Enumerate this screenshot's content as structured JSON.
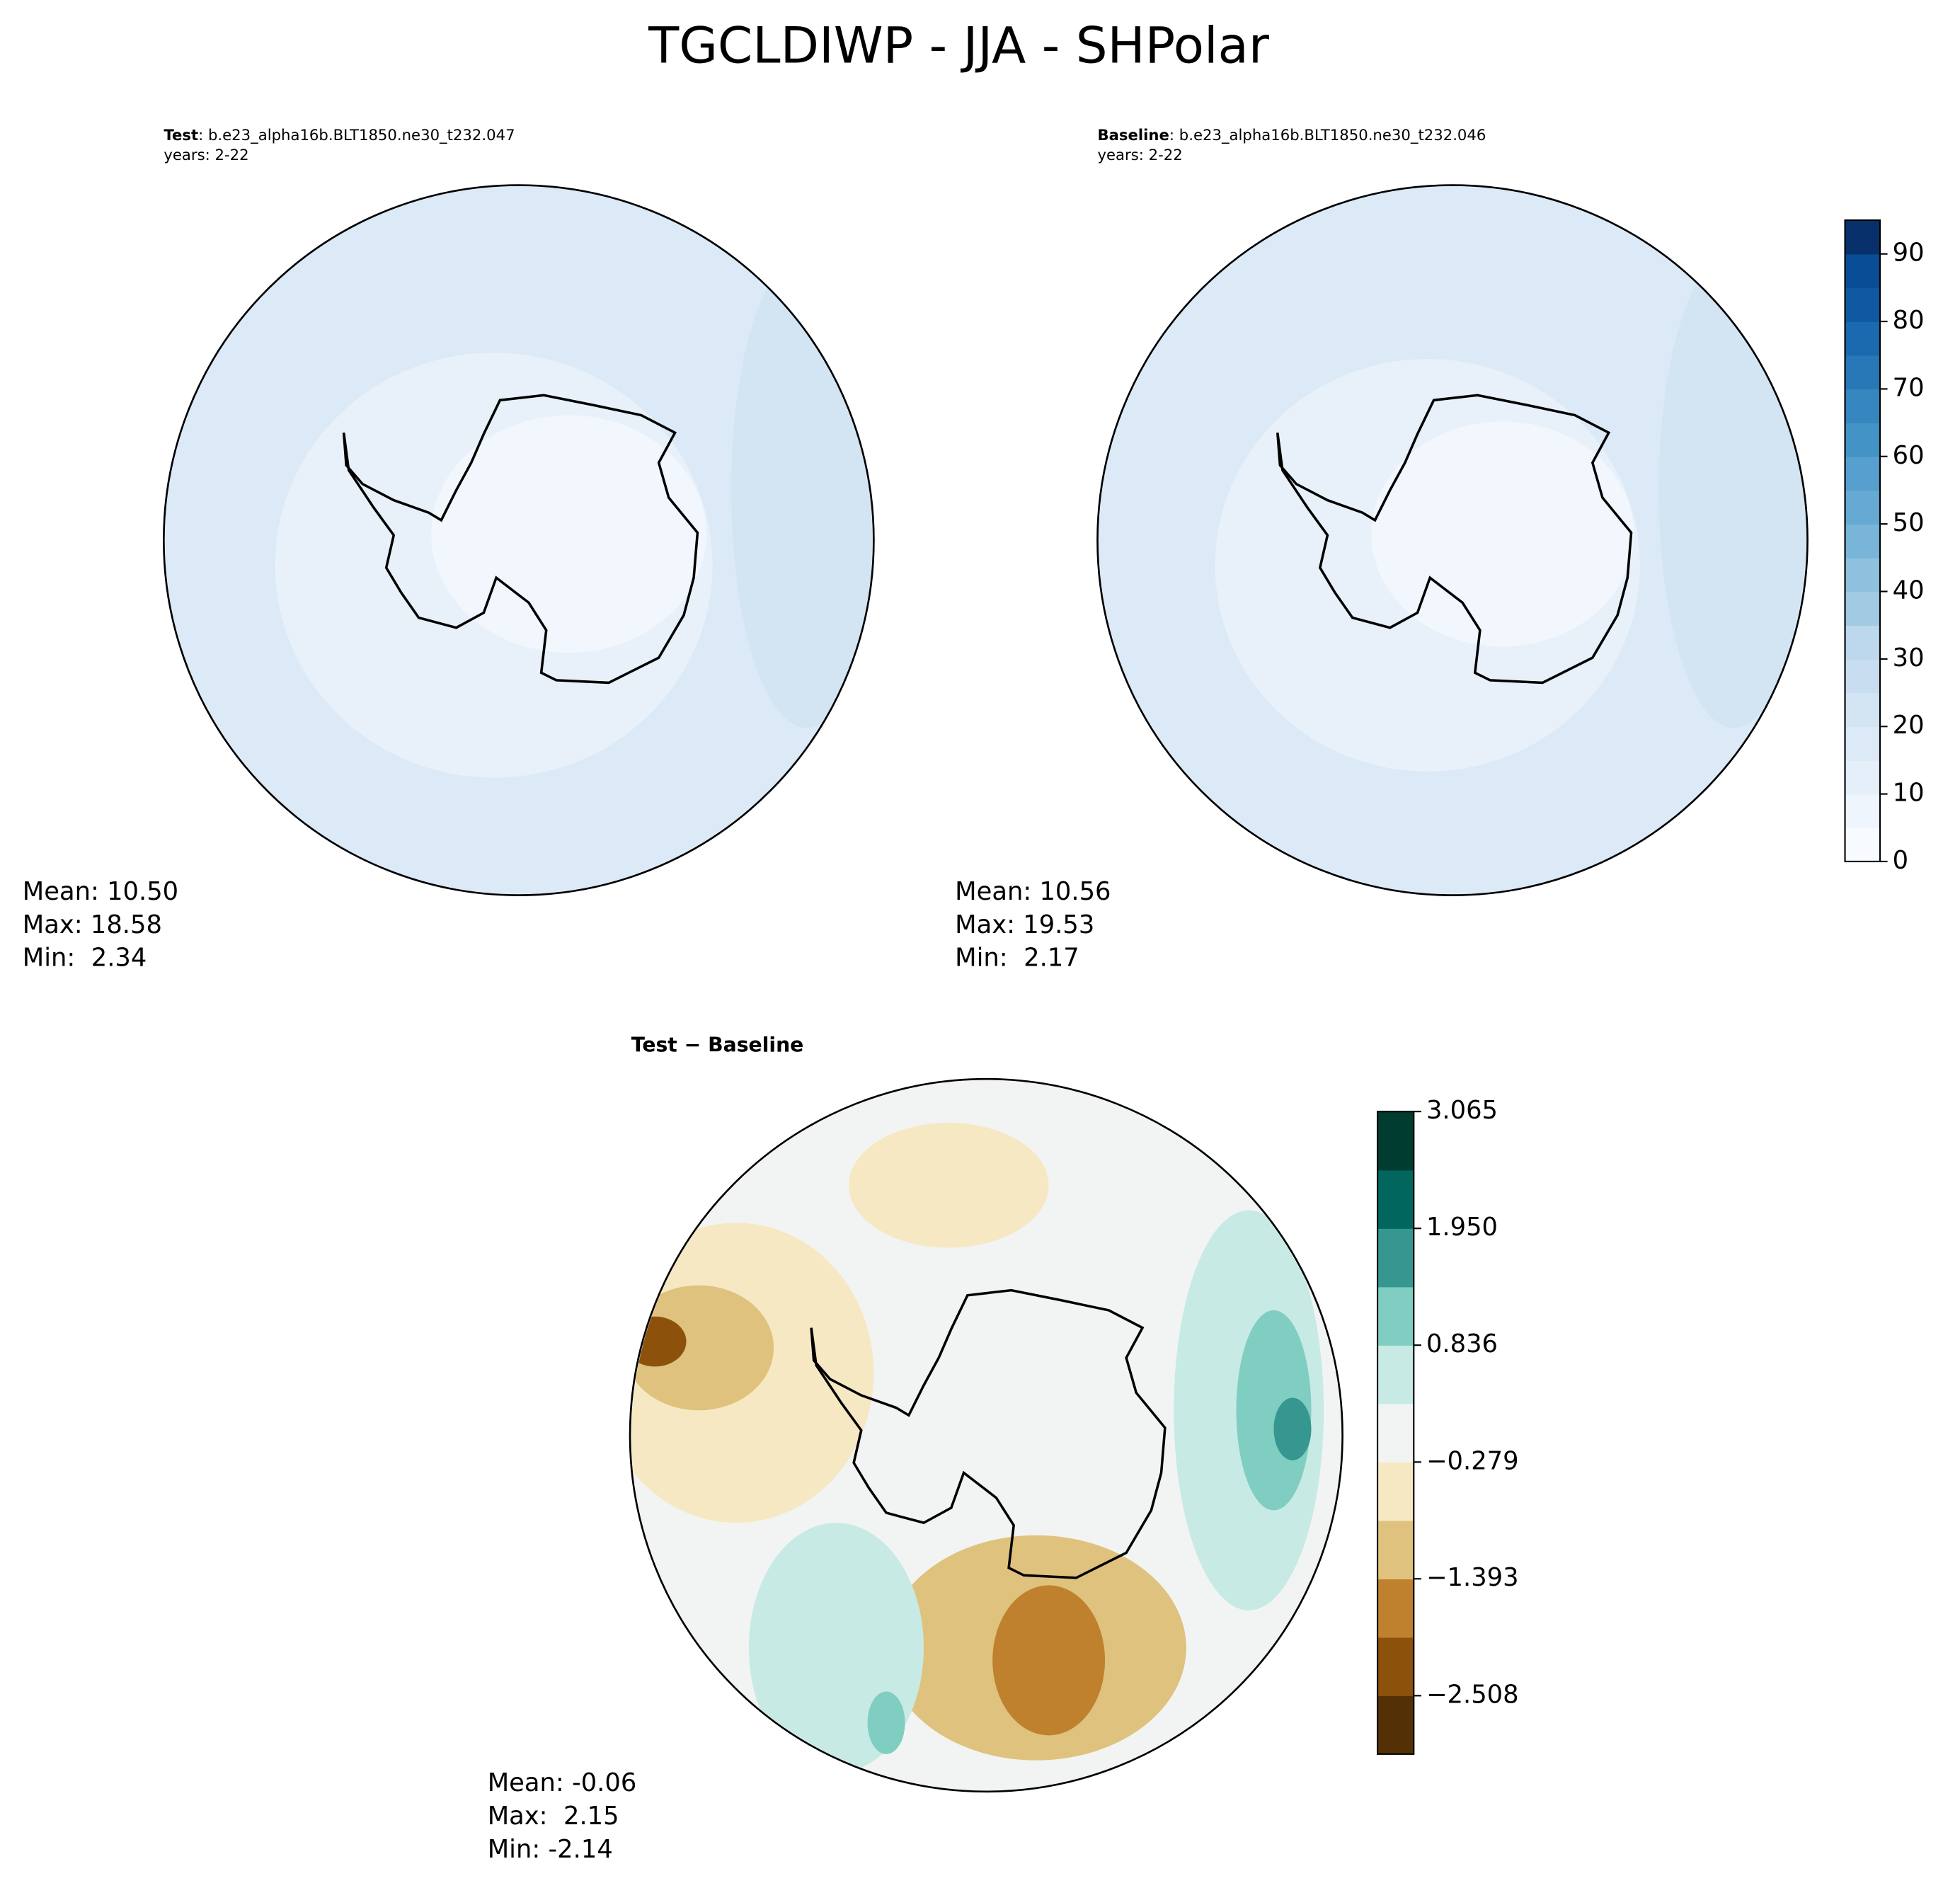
{
  "title": "TGCLDIWP - JJA - SHPolar",
  "chart_data": [
    {
      "type": "map",
      "label": "Test",
      "case": ": b.e23_alpha16b.BLT1850.ne30_t232.047",
      "years": "years: 2-22",
      "stats": [
        "Mean: 10.50",
        "Max: 18.58",
        "Min:  2.34"
      ]
    },
    {
      "type": "map",
      "label": "Baseline",
      "case": ": b.e23_alpha16b.BLT1850.ne30_t232.046",
      "years": "years: 2-22",
      "stats": [
        "Mean: 10.56",
        "Max: 19.53",
        "Min:  2.17"
      ],
      "colorbar": {
        "lim": [
          0,
          95
        ],
        "ticks": [
          0,
          10,
          20,
          30,
          40,
          50,
          60,
          70,
          80,
          90
        ],
        "colors": [
          "#f7fbff",
          "#eef5fc",
          "#e5eff9",
          "#dce9f6",
          "#d3e4f3",
          "#c9ddf0",
          "#bdd7ec",
          "#a0cbe2",
          "#8dc1dd",
          "#79b5d9",
          "#66aad4",
          "#569fcf",
          "#4493c7",
          "#3686c0",
          "#2878b8",
          "#1b69af",
          "#0e59a2",
          "#084d96",
          "#08306b"
        ]
      }
    },
    {
      "type": "map",
      "label": "Test − Baseline",
      "stats": [
        "Mean: -0.06",
        "Max:  2.15",
        "Min: -2.14"
      ],
      "colorbar": {
        "lim": [
          -3.065,
          3.065
        ],
        "ticks": [
          {
            "value": -2.508,
            "label": "−2.508"
          },
          {
            "value": -1.393,
            "label": "−1.393"
          },
          {
            "value": -0.279,
            "label": "−0.279"
          },
          0.836,
          {
            "value": 1.95,
            "label": "1.950"
          },
          3.065
        ],
        "colors": [
          "#543005",
          "#8c510a",
          "#bf812d",
          "#dfc27d",
          "#f6e8c3",
          "#f2f4f3",
          "#c7eae5",
          "#80cdc1",
          "#35978f",
          "#01665e",
          "#003c30"
        ]
      }
    }
  ]
}
